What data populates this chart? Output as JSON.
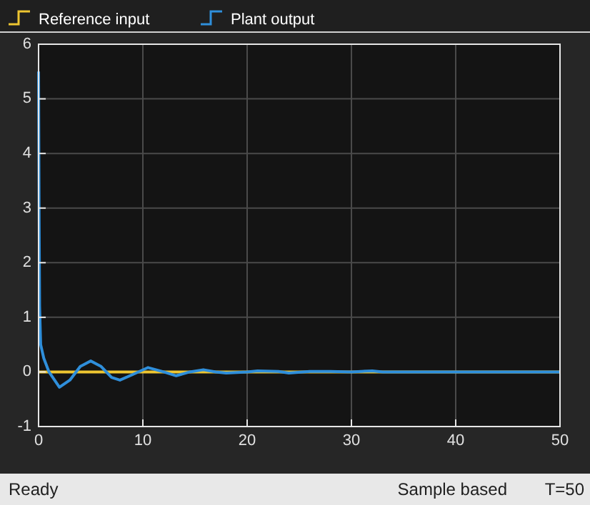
{
  "chart_data": {
    "type": "line",
    "legend": "top left",
    "grid": true,
    "xlim": [
      0,
      50
    ],
    "xticks": [
      0,
      10,
      20,
      30,
      40,
      50
    ],
    "ylim": [
      -1,
      6
    ],
    "yticks": [
      -1,
      0,
      1,
      2,
      3,
      4,
      5,
      6
    ],
    "annotations": [
      "Ready",
      "Sample based",
      "T=50"
    ],
    "series": [
      {
        "name": "Reference input",
        "color": "#edc531",
        "type": "step",
        "x": [
          0,
          50
        ],
        "values": [
          0,
          0
        ]
      },
      {
        "name": "Plant output",
        "color": "#2f8fdb",
        "x": [
          0,
          0.05,
          0.1,
          0.2,
          0.5,
          1,
          2,
          3,
          4,
          5,
          6,
          7,
          7.8,
          9,
          10.5,
          12,
          13.2,
          14.5,
          15.8,
          17,
          18,
          20,
          21,
          23,
          24,
          26,
          28,
          30,
          32,
          33,
          50
        ],
        "values": [
          5.5,
          3,
          1.2,
          0.5,
          0.25,
          0,
          -0.28,
          -0.15,
          0.1,
          0.2,
          0.1,
          -0.1,
          -0.15,
          -0.05,
          0.08,
          0,
          -0.07,
          0,
          0.04,
          0,
          -0.02,
          0,
          0.02,
          0.01,
          -0.02,
          0.01,
          0.01,
          0,
          0.02,
          0,
          0
        ]
      }
    ]
  }
}
